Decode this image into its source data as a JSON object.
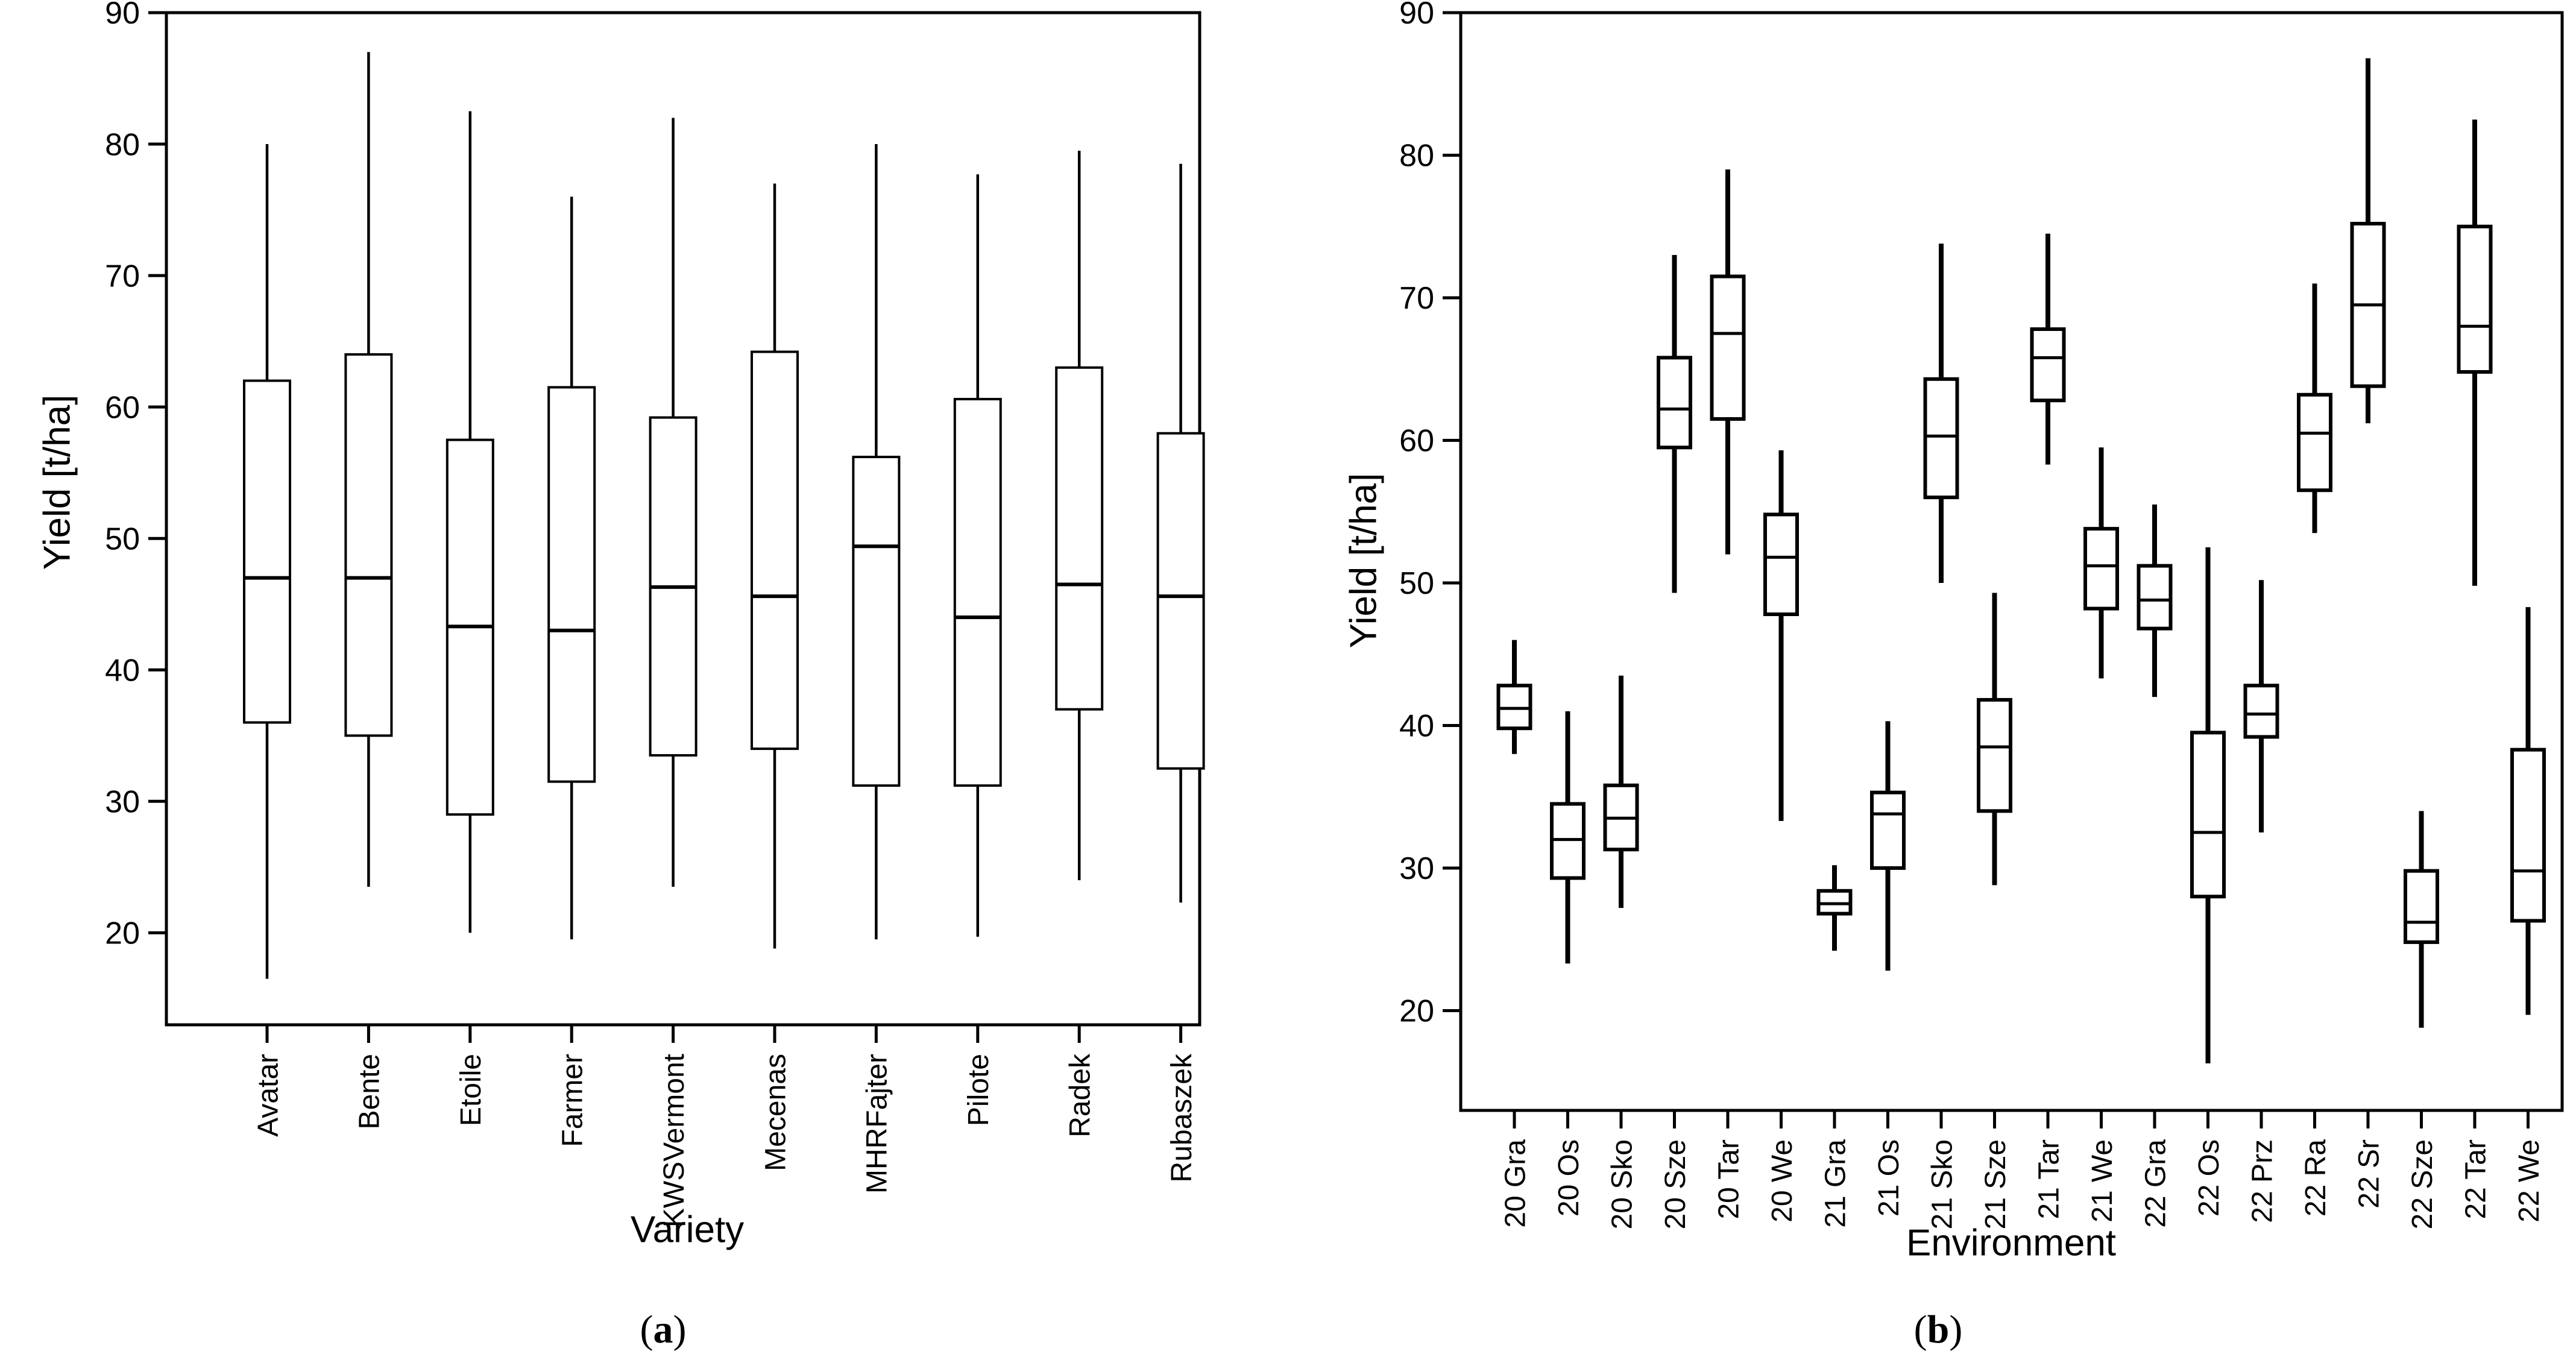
{
  "figure": {
    "background": "#ffffff",
    "ink": "#000000",
    "captions": {
      "a": {
        "pre": "(",
        "letter": "a",
        "post": ")"
      },
      "b": {
        "pre": "(",
        "letter": "b",
        "post": ")"
      }
    }
  },
  "chart_data": [
    {
      "type": "boxplot",
      "panel": "a",
      "title": "",
      "xlabel": "Variety",
      "ylabel": "Yield [t/ha]",
      "ylim": [
        13,
        90
      ],
      "yticks": [
        20,
        30,
        40,
        50,
        60,
        70,
        80,
        90
      ],
      "grid": false,
      "legend": "none",
      "categories": [
        "Avatar",
        "Bente",
        "Etoile",
        "Farmer",
        "KWSVermont",
        "Mecenas",
        "MHRFajter",
        "Pilote",
        "Radek",
        "Rubaszek"
      ],
      "boxes": [
        {
          "label": "Avatar",
          "whisker_low": 16.5,
          "q1": 36.0,
          "median": 47.0,
          "q3": 62.0,
          "whisker_high": 80.0
        },
        {
          "label": "Bente",
          "whisker_low": 23.5,
          "q1": 35.0,
          "median": 47.0,
          "q3": 64.0,
          "whisker_high": 87.0
        },
        {
          "label": "Etoile",
          "whisker_low": 20.0,
          "q1": 29.0,
          "median": 43.3,
          "q3": 57.5,
          "whisker_high": 82.5
        },
        {
          "label": "Farmer",
          "whisker_low": 19.5,
          "q1": 31.5,
          "median": 43.0,
          "q3": 61.5,
          "whisker_high": 76.0
        },
        {
          "label": "KWSVermont",
          "whisker_low": 23.5,
          "q1": 33.5,
          "median": 46.3,
          "q3": 59.2,
          "whisker_high": 82.0
        },
        {
          "label": "Mecenas",
          "whisker_low": 18.8,
          "q1": 34.0,
          "median": 45.6,
          "q3": 64.2,
          "whisker_high": 77.0
        },
        {
          "label": "MHRFajter",
          "whisker_low": 19.5,
          "q1": 31.2,
          "median": 49.4,
          "q3": 56.2,
          "whisker_high": 80.0
        },
        {
          "label": "Pilote",
          "whisker_low": 19.7,
          "q1": 31.2,
          "median": 44.0,
          "q3": 60.6,
          "whisker_high": 77.7
        },
        {
          "label": "Radek",
          "whisker_low": 24.0,
          "q1": 37.0,
          "median": 46.5,
          "q3": 63.0,
          "whisker_high": 79.5
        },
        {
          "label": "Rubaszek",
          "whisker_low": 22.3,
          "q1": 32.5,
          "median": 45.6,
          "q3": 58.0,
          "whisker_high": 78.5
        }
      ]
    },
    {
      "type": "boxplot",
      "panel": "b",
      "title": "",
      "xlabel": "Environment",
      "ylabel": "Yield [t/ha]",
      "ylim": [
        13,
        90
      ],
      "yticks": [
        20,
        30,
        40,
        50,
        60,
        70,
        80,
        90
      ],
      "grid": false,
      "legend": "none",
      "categories": [
        "20 Gra",
        "20 Os",
        "20 Sko",
        "20 Sze",
        "20 Tar",
        "20 We",
        "21 Gra",
        "21 Os",
        "21 Sko",
        "21 Sze",
        "21 Tar",
        "21 We",
        "22 Gra",
        "22 Os",
        "22 Prz",
        "22 Ra",
        "22 Sr",
        "22 Sze",
        "22 Tar",
        "22 We"
      ],
      "boxes": [
        {
          "label": "20 Gra",
          "whisker_low": 38.0,
          "q1": 39.8,
          "median": 41.2,
          "q3": 42.8,
          "whisker_high": 46.0
        },
        {
          "label": "20 Os",
          "whisker_low": 23.3,
          "q1": 29.3,
          "median": 32.0,
          "q3": 34.5,
          "whisker_high": 41.0
        },
        {
          "label": "20 Sko",
          "whisker_low": 27.2,
          "q1": 31.3,
          "median": 33.5,
          "q3": 35.8,
          "whisker_high": 43.5
        },
        {
          "label": "20 Sze",
          "whisker_low": 49.3,
          "q1": 59.5,
          "median": 62.2,
          "q3": 65.8,
          "whisker_high": 73.0
        },
        {
          "label": "20 Tar",
          "whisker_low": 52.0,
          "q1": 61.5,
          "median": 67.5,
          "q3": 71.5,
          "whisker_high": 79.0
        },
        {
          "label": "20 We",
          "whisker_low": 33.3,
          "q1": 47.8,
          "median": 51.8,
          "q3": 54.8,
          "whisker_high": 59.3
        },
        {
          "label": "21 Gra",
          "whisker_low": 24.2,
          "q1": 26.8,
          "median": 27.5,
          "q3": 28.4,
          "whisker_high": 30.2
        },
        {
          "label": "21 Os",
          "whisker_low": 22.8,
          "q1": 30.0,
          "median": 33.8,
          "q3": 35.3,
          "whisker_high": 40.3
        },
        {
          "label": "21 Sko",
          "whisker_low": 50.0,
          "q1": 56.0,
          "median": 60.3,
          "q3": 64.3,
          "whisker_high": 73.8
        },
        {
          "label": "21 Sze",
          "whisker_low": 28.8,
          "q1": 34.0,
          "median": 38.5,
          "q3": 41.8,
          "whisker_high": 49.3
        },
        {
          "label": "21 Tar",
          "whisker_low": 58.3,
          "q1": 62.8,
          "median": 65.8,
          "q3": 67.8,
          "whisker_high": 74.5
        },
        {
          "label": "21 We",
          "whisker_low": 43.3,
          "q1": 48.2,
          "median": 51.2,
          "q3": 53.8,
          "whisker_high": 59.5
        },
        {
          "label": "22 Gra",
          "whisker_low": 42.0,
          "q1": 46.8,
          "median": 48.8,
          "q3": 51.2,
          "whisker_high": 55.5
        },
        {
          "label": "22 Os",
          "whisker_low": 16.3,
          "q1": 28.0,
          "median": 32.5,
          "q3": 39.5,
          "whisker_high": 52.5
        },
        {
          "label": "22 Prz",
          "whisker_low": 32.5,
          "q1": 39.2,
          "median": 40.8,
          "q3": 42.8,
          "whisker_high": 50.2
        },
        {
          "label": "22 Ra",
          "whisker_low": 53.5,
          "q1": 56.5,
          "median": 60.5,
          "q3": 63.2,
          "whisker_high": 71.0
        },
        {
          "label": "22 Sr",
          "whisker_low": 61.2,
          "q1": 63.8,
          "median": 69.5,
          "q3": 75.2,
          "whisker_high": 86.8
        },
        {
          "label": "22 Sze",
          "whisker_low": 18.8,
          "q1": 24.8,
          "median": 26.2,
          "q3": 29.8,
          "whisker_high": 34.0
        },
        {
          "label": "22 Tar",
          "whisker_low": 49.8,
          "q1": 64.8,
          "median": 68.0,
          "q3": 75.0,
          "whisker_high": 82.5
        },
        {
          "label": "22 We",
          "whisker_low": 19.7,
          "q1": 26.3,
          "median": 29.8,
          "q3": 38.3,
          "whisker_high": 48.3
        }
      ]
    }
  ]
}
